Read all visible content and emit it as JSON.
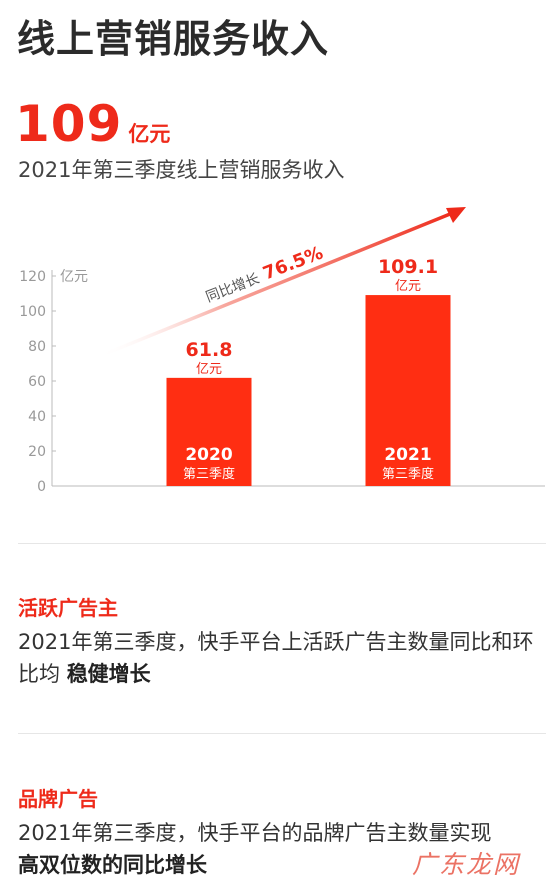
{
  "page": {
    "title": "线上营销服务收入",
    "kpi_value": "109",
    "kpi_unit": "亿元",
    "subtitle": "2021年第三季度线上营销服务收入"
  },
  "chart_data": {
    "type": "bar",
    "yunit": "亿元",
    "ylim": [
      0,
      120
    ],
    "yticks": [
      0,
      20,
      40,
      60,
      80,
      100,
      120
    ],
    "grid": false,
    "categories": [
      {
        "year": "2020",
        "period": "第三季度"
      },
      {
        "year": "2021",
        "period": "第三季度"
      }
    ],
    "values": [
      61.8,
      109.1
    ],
    "value_labels": [
      "61.8",
      "109.1"
    ],
    "value_unit": "亿元",
    "bar_color": "#ff2e12",
    "annotation": {
      "text": "同比增长",
      "value": "76.5%"
    }
  },
  "sections": [
    {
      "heading": "活跃广告主",
      "body": "2021年第三季度，快手平台上活跃广告主数量同比和环比均",
      "emphasis": "稳健增长"
    },
    {
      "heading": "品牌广告",
      "body": "2021年第三季度，快手平台的品牌广告主数量实现",
      "emphasis": "高双位数的同比增长"
    }
  ],
  "watermark": "广东龙网",
  "colors": {
    "accent": "#ee2a1a",
    "text": "#333333",
    "axis": "#bbbbbb"
  }
}
